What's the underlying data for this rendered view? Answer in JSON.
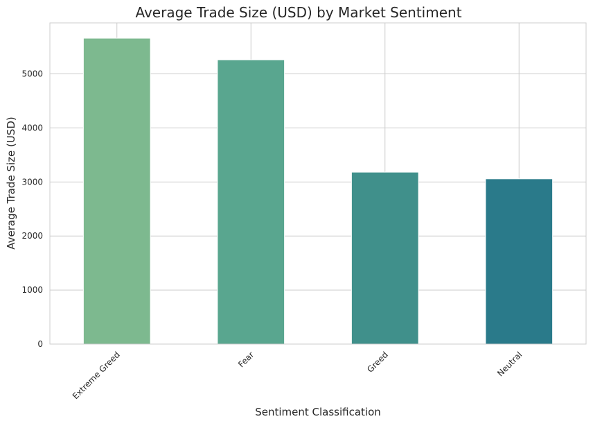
{
  "chart_data": {
    "type": "bar",
    "title": "Average Trade Size (USD) by Market Sentiment",
    "xlabel": "Sentiment Classification",
    "ylabel": "Average Trade Size (USD)",
    "categories": [
      "Extreme Greed",
      "Fear",
      "Greed",
      "Neutral"
    ],
    "values": [
      5661,
      5260,
      3182,
      3058
    ],
    "colors": [
      "#7db98f",
      "#59a68f",
      "#40908b",
      "#2a7a8a"
    ],
    "yticks": [
      0,
      1000,
      2000,
      3000,
      4000,
      5000
    ],
    "ytick_labels": [
      "0",
      "1000",
      "2000",
      "3000",
      "4000",
      "5000"
    ],
    "ylim": [
      0,
      5944
    ],
    "grid": true,
    "legend": "none",
    "grid_color": "#cccccc",
    "axes_edge_color": "#cccccc"
  }
}
